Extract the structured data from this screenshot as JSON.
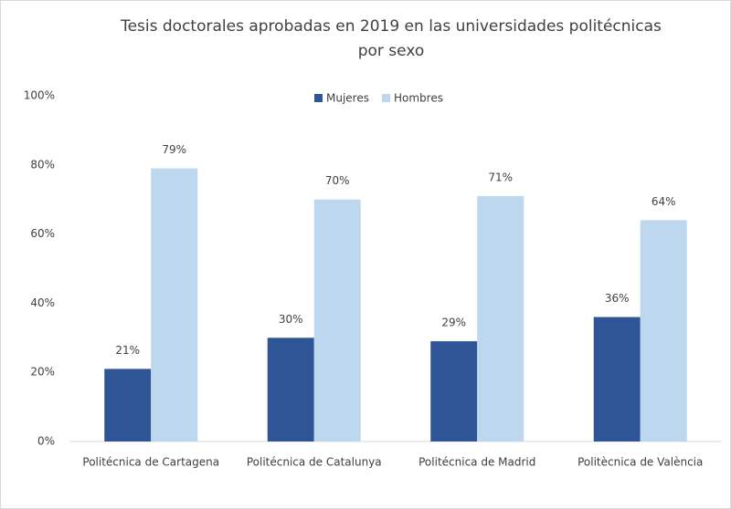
{
  "chart_data": {
    "type": "bar",
    "title": [
      "Tesis doctorales aprobadas en 2019 en las universidades politécnicas",
      "por sexo"
    ],
    "categories": [
      "Politécnica de Cartagena",
      "Politécnica de Catalunya",
      "Politécnica de Madrid",
      "Politècnica de València"
    ],
    "series": [
      {
        "name": "Mujeres",
        "color": "#2f5597",
        "values": [
          21,
          30,
          29,
          36
        ],
        "value_labels": [
          "21%",
          "30%",
          "29%",
          "36%"
        ]
      },
      {
        "name": "Hombres",
        "color": "#bdd7ee",
        "values": [
          79,
          70,
          71,
          64
        ],
        "value_labels": [
          "79%",
          "70%",
          "71%",
          "64%"
        ]
      }
    ],
    "ylim": [
      0,
      100
    ],
    "yticks": [
      {
        "value": 0,
        "label": "0%"
      },
      {
        "value": 20,
        "label": "20%"
      },
      {
        "value": 40,
        "label": "40%"
      },
      {
        "value": 60,
        "label": "60%"
      },
      {
        "value": 80,
        "label": "80%"
      },
      {
        "value": 100,
        "label": "100%"
      }
    ],
    "grid": false,
    "legend": "top"
  }
}
